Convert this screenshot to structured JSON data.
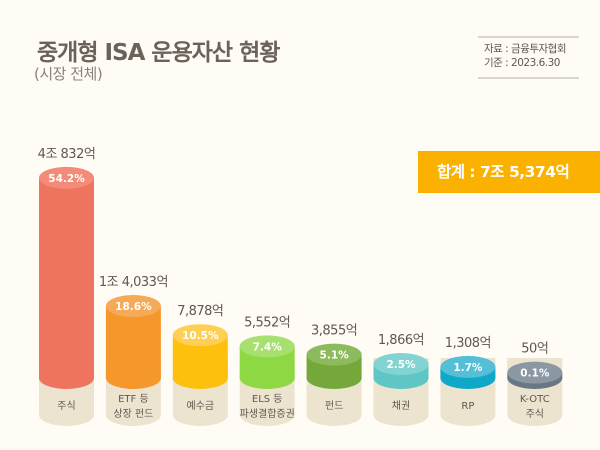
{
  "header": {
    "title": "중개형 ISA 운용자산 현황",
    "subtitle": "(시장 전체)",
    "source": "자료 : 금융투자협회",
    "date": "기준 : 2023.6.30"
  },
  "total": "합계 : 7조 5,374억",
  "chart_data": {
    "type": "bar",
    "categories": [
      [
        "주식"
      ],
      [
        "ETF 등",
        "상장 펀드"
      ],
      [
        "예수금"
      ],
      [
        "ELS 등",
        "파생결합증권"
      ],
      [
        "펀드"
      ],
      [
        "채권"
      ],
      [
        "RP"
      ],
      [
        "K-OTC",
        "주식"
      ]
    ],
    "value_labels": [
      "4조 832억",
      "1조 4,033억",
      "7,878억",
      "5,552억",
      "3,855억",
      "1,866억",
      "1,308억",
      "50억"
    ],
    "values_eok": [
      40832,
      14033,
      7878,
      5552,
      3855,
      1866,
      1308,
      50
    ],
    "percent_labels": [
      "54.2%",
      "18.6%",
      "10.5%",
      "7.4%",
      "5.1%",
      "2.5%",
      "1.7%",
      "0.1%"
    ],
    "percent": [
      54.2,
      18.6,
      10.5,
      7.4,
      5.1,
      2.5,
      1.7,
      0.1
    ],
    "colors": [
      "#ef7460",
      "#f5972a",
      "#fdc00c",
      "#8ed843",
      "#74a83a",
      "#5ec6c4",
      "#10a8c9",
      "#697785"
    ],
    "top_colors": [
      "#f28c78",
      "#f7aa55",
      "#fdd055",
      "#a8e070",
      "#8cba5c",
      "#82d4d2",
      "#56bfd8",
      "#8b97a3"
    ],
    "base_color": "#ede4d0"
  }
}
